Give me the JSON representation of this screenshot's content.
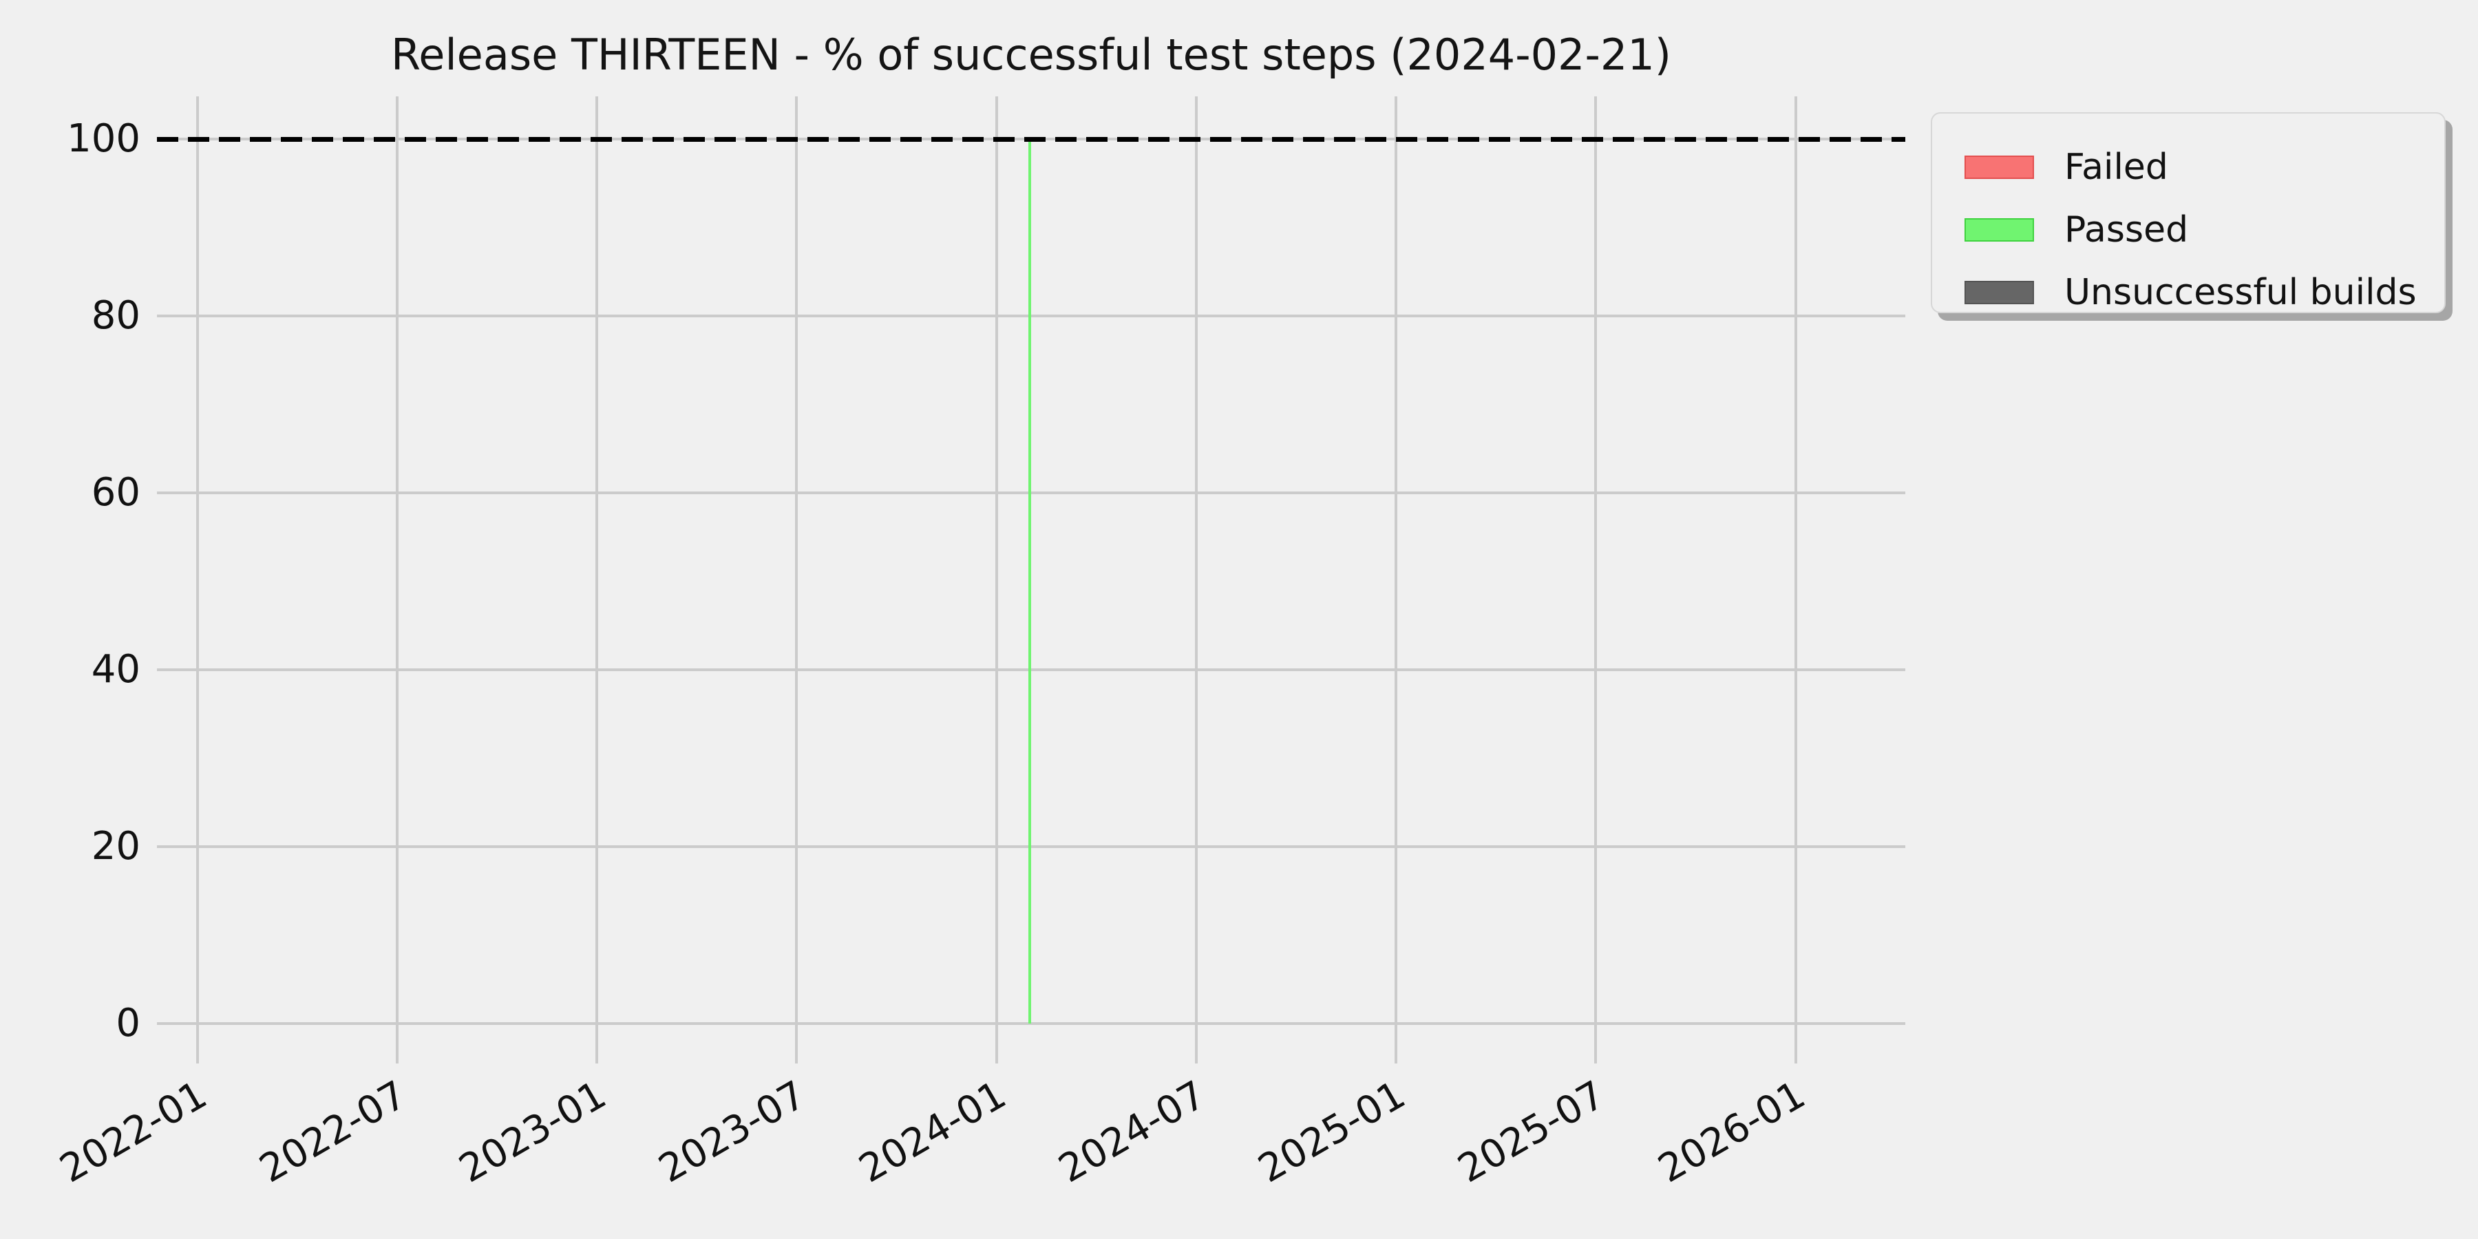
{
  "figure": {
    "background": "#f0f0f0",
    "text_color": "#111111"
  },
  "chart_data": {
    "type": "bar",
    "title": "Release THIRTEEN - % of successful test steps (2024-02-21)",
    "x_axis": {
      "type": "time",
      "tick_labels": [
        "2022-01",
        "2022-07",
        "2023-01",
        "2023-07",
        "2024-01",
        "2024-07",
        "2025-01",
        "2025-07",
        "2026-01"
      ],
      "range": [
        "2021-11-25",
        "2026-04-10"
      ],
      "tick_rotation_deg": 30
    },
    "y_axis": {
      "ticks": [
        100,
        80,
        60,
        40,
        20,
        0
      ],
      "range": [
        -4.5,
        104.8
      ]
    },
    "grid": {
      "visible": true,
      "color": "#cbcbcb"
    },
    "reference_line": {
      "y": 100,
      "style": "dashed",
      "color": "#000000"
    },
    "series": [
      {
        "name": "Failed",
        "color": "#f87373",
        "edge_color": "#e34f4f",
        "points": []
      },
      {
        "name": "Passed",
        "color": "#70f470",
        "edge_color": "#3fd23f",
        "points": [
          {
            "x": "2024-02-01",
            "y": 100
          }
        ]
      },
      {
        "name": "Unsuccessful builds",
        "color": "#666666",
        "edge_color": "#545454",
        "points": []
      }
    ],
    "legend": {
      "position": "upper right",
      "fancybox": true,
      "shadow": true
    }
  }
}
